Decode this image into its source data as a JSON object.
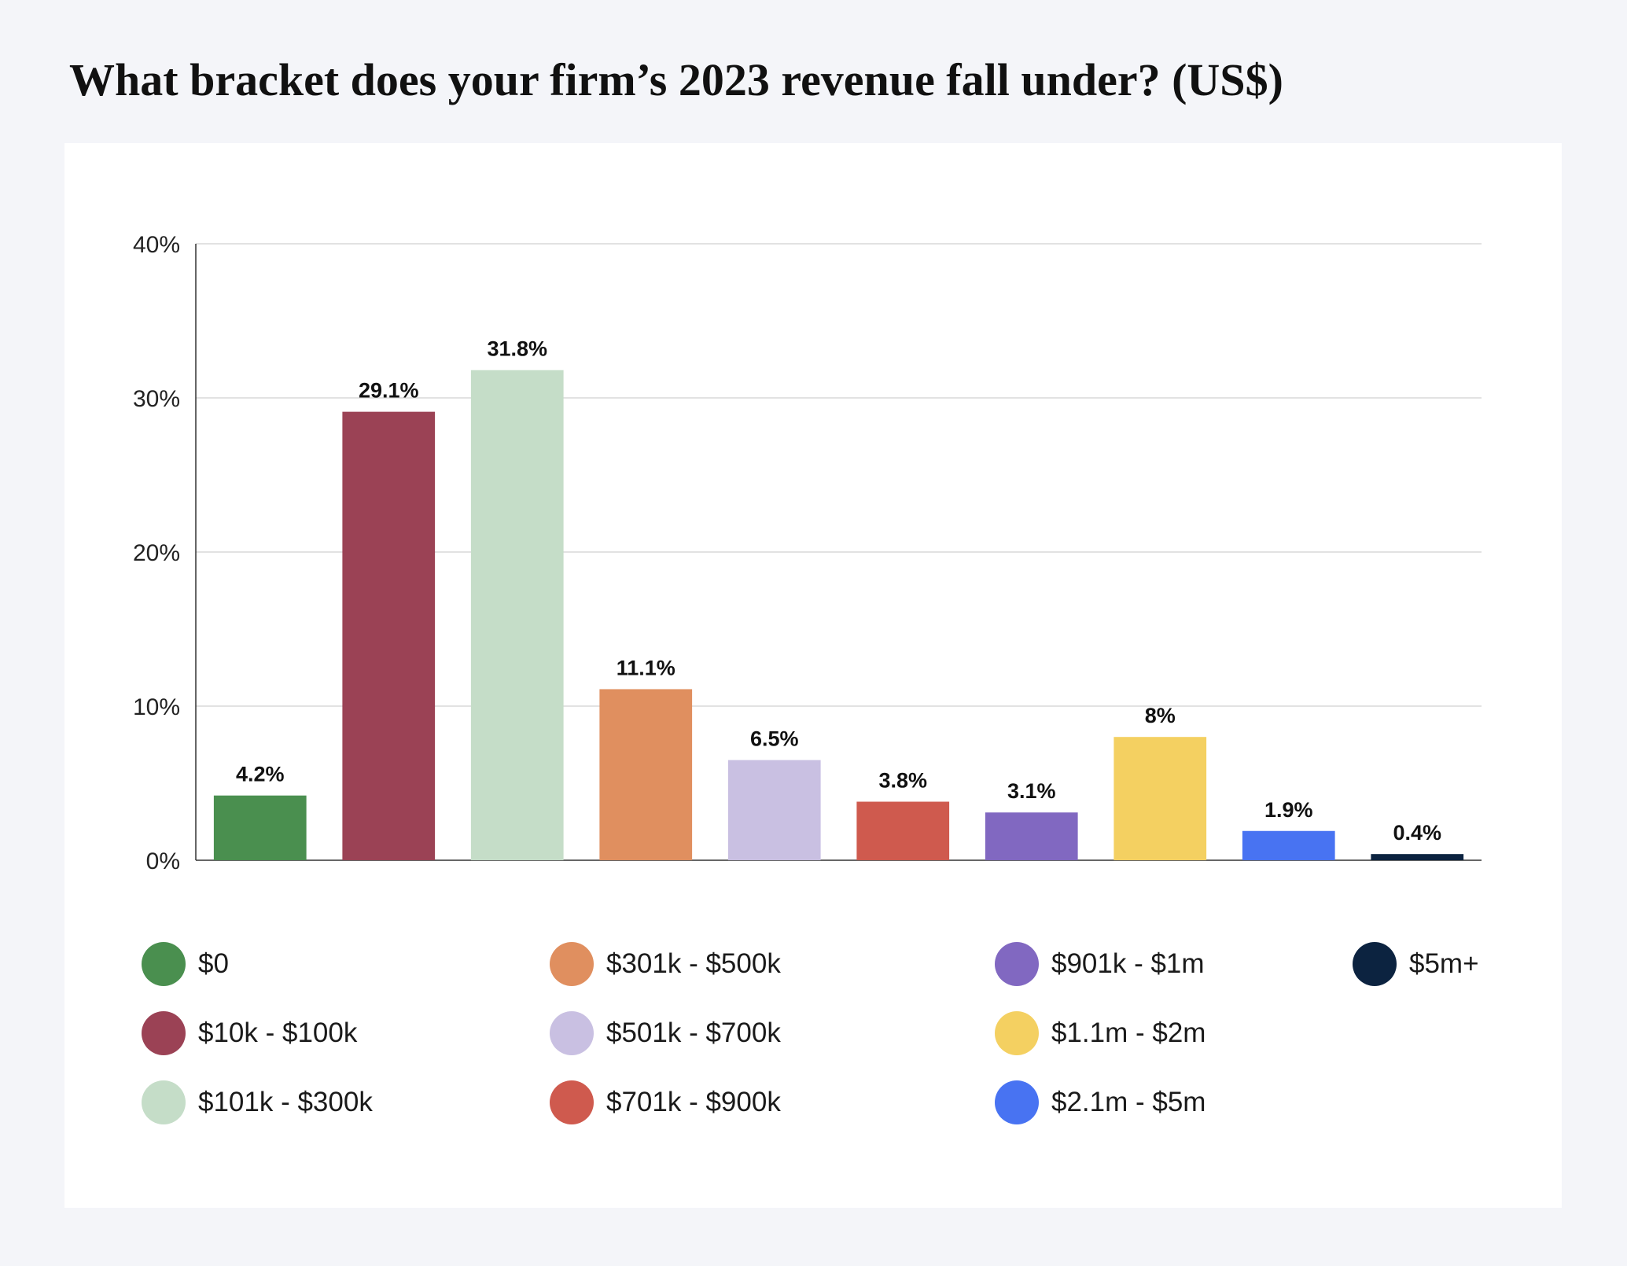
{
  "title": "What bracket does your firm’s 2023 revenue fall under? (US$)",
  "chart_data": {
    "type": "bar",
    "title": "What bracket does your firm’s 2023 revenue fall under? (US$)",
    "xlabel": "",
    "ylabel": "",
    "ylim": [
      0,
      40
    ],
    "yticks": [
      "0%",
      "10%",
      "20%",
      "30%",
      "40%"
    ],
    "grid": true,
    "legend_placement": "bottom",
    "categories": [
      "$0",
      "$10k - $100k",
      "$101k - $300k",
      "$301k - $500k",
      "$501k - $700k",
      "$701k - $900k",
      "$901k - $1m",
      "$1.1m - $2m",
      "$2.1m - $5m",
      "$5m+"
    ],
    "values": [
      4.2,
      29.1,
      31.8,
      11.1,
      6.5,
      3.8,
      3.1,
      8,
      1.9,
      0.4
    ],
    "value_labels": [
      "4.2%",
      "29.1%",
      "31.8%",
      "11.1%",
      "6.5%",
      "3.8%",
      "3.1%",
      "8%",
      "1.9%",
      "0.4%"
    ],
    "colors": [
      "#4a8f4f",
      "#9b4255",
      "#c5ddc8",
      "#e08f5f",
      "#c9c0e2",
      "#cf5a4e",
      "#8168c1",
      "#f4d061",
      "#4873f2",
      "#0c2340"
    ]
  },
  "legend": {
    "items": [
      {
        "label": "$0",
        "color": "#4a8f4f"
      },
      {
        "label": "$10k - $100k",
        "color": "#9b4255"
      },
      {
        "label": "$101k - $300k",
        "color": "#c5ddc8"
      },
      {
        "label": "$301k - $500k",
        "color": "#e08f5f"
      },
      {
        "label": "$501k - $700k",
        "color": "#c9c0e2"
      },
      {
        "label": "$701k - $900k",
        "color": "#cf5a4e"
      },
      {
        "label": "$901k - $1m",
        "color": "#8168c1"
      },
      {
        "label": "$1.1m - $2m",
        "color": "#f4d061"
      },
      {
        "label": "$2.1m - $5m",
        "color": "#4873f2"
      },
      {
        "label": "$5m+",
        "color": "#0c2340"
      }
    ]
  }
}
